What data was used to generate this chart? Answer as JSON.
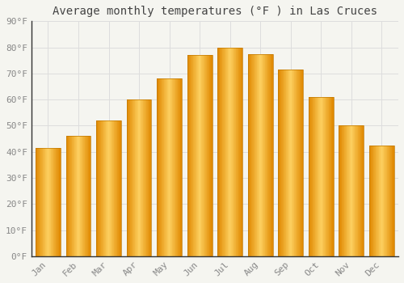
{
  "title": "Average monthly temperatures (°F ) in Las Cruces",
  "months": [
    "Jan",
    "Feb",
    "Mar",
    "Apr",
    "May",
    "Jun",
    "Jul",
    "Aug",
    "Sep",
    "Oct",
    "Nov",
    "Dec"
  ],
  "values": [
    41.5,
    46,
    52,
    60,
    68,
    77,
    80,
    77.5,
    71.5,
    61,
    50,
    42.5
  ],
  "bar_color_main": "#FBAA1A",
  "bar_color_light": "#FDD060",
  "bar_color_dark": "#E08800",
  "background_color": "#F5F5F0",
  "plot_bg_color": "#F5F5F0",
  "grid_color": "#DDDDDD",
  "tick_label_color": "#888888",
  "title_color": "#444444",
  "spine_color": "#333333",
  "ylim": [
    0,
    90
  ],
  "yticks": [
    0,
    10,
    20,
    30,
    40,
    50,
    60,
    70,
    80,
    90
  ],
  "ytick_labels": [
    "0°F",
    "10°F",
    "20°F",
    "30°F",
    "40°F",
    "50°F",
    "60°F",
    "70°F",
    "80°F",
    "90°F"
  ],
  "title_fontsize": 10,
  "tick_fontsize": 8,
  "figsize": [
    5.0,
    3.5
  ],
  "dpi": 100,
  "bar_width": 0.82
}
